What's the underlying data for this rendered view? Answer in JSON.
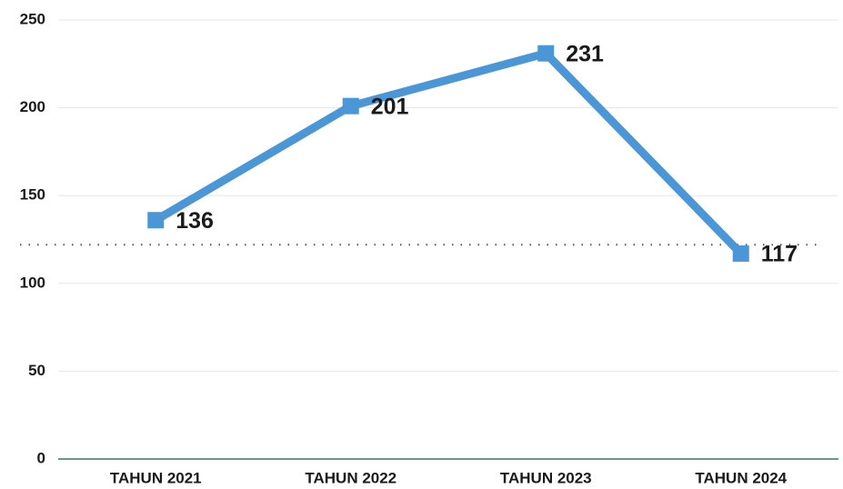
{
  "chart_data": {
    "type": "line",
    "categories": [
      "TAHUN 2021",
      "TAHUN 2022",
      "TAHUN 2023",
      "TAHUN 2024"
    ],
    "series": [
      {
        "color": "#4b96d6",
        "values": [
          136,
          201,
          231,
          117
        ]
      }
    ],
    "ylim": [
      0,
      250
    ],
    "yticks": [
      0,
      50,
      100,
      150,
      200,
      250
    ],
    "grid": true,
    "reference_line": 122
  }
}
